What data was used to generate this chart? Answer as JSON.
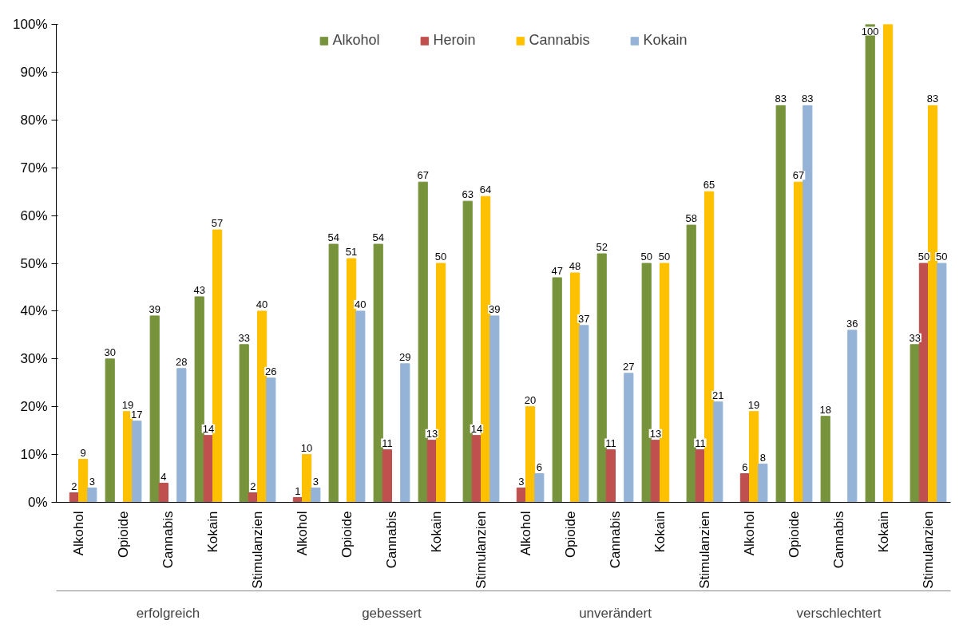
{
  "chart_data": {
    "type": "bar",
    "categories": [
      "Alkohol",
      "Opioide",
      "Cannabis",
      "Kokain",
      "Stimulanzien",
      "Alkohol",
      "Opioide",
      "Cannabis",
      "Kokain",
      "Stimulanzien",
      "Alkohol",
      "Opioide",
      "Cannabis",
      "Kokain",
      "Stimulanzien",
      "Alkohol",
      "Opioide",
      "Cannabis",
      "Kokain",
      "Stimulanzien"
    ],
    "annotations": [
      "erfolgreich",
      "gebessert",
      "unverändert",
      "verschlechtert"
    ],
    "series": [
      {
        "name": "Alkohol",
        "color": "#77933c",
        "values": [
          null,
          30,
          39,
          43,
          33,
          null,
          54,
          54,
          67,
          63,
          null,
          47,
          52,
          50,
          58,
          null,
          83,
          18,
          100,
          33
        ],
        "value_labels": [
          null,
          "30",
          "39",
          "43",
          "33",
          null,
          "54",
          "54",
          "67",
          "63",
          null,
          "47",
          "52",
          "50",
          "58",
          null,
          "83",
          "18",
          "100",
          "33"
        ]
      },
      {
        "name": "Heroin",
        "color": "#c0504d",
        "values": [
          2,
          null,
          4,
          14,
          2,
          1,
          null,
          11,
          13,
          14,
          3,
          null,
          11,
          13,
          11,
          6,
          null,
          null,
          null,
          50
        ],
        "value_labels": [
          "2",
          null,
          "4",
          "14",
          "2",
          "1",
          null,
          "11",
          "13",
          "14",
          "3",
          null,
          "11",
          "13",
          "11",
          "6",
          null,
          null,
          null,
          "50"
        ]
      },
      {
        "name": "Cannabis",
        "color": "#ffc000",
        "values": [
          9,
          19,
          null,
          57,
          40,
          10,
          51,
          null,
          50,
          64,
          20,
          48,
          null,
          50,
          65,
          19,
          67,
          null,
          100,
          83
        ],
        "value_labels": [
          "9",
          "19",
          null,
          "57",
          "40",
          "10",
          "51",
          null,
          "50",
          "64",
          "20",
          "48",
          null,
          "50",
          "65",
          "19",
          "67",
          null,
          null,
          "83"
        ]
      },
      {
        "name": "Kokain",
        "color": "#95b3d7",
        "values": [
          3,
          17,
          28,
          null,
          26,
          3,
          40,
          29,
          null,
          39,
          6,
          37,
          27,
          null,
          21,
          8,
          83,
          36,
          null,
          50
        ],
        "value_labels": [
          "3",
          "17",
          "28",
          null,
          "26",
          "3",
          "40",
          "29",
          null,
          "39",
          "6",
          "37",
          "27",
          null,
          "21",
          "8",
          "83",
          "36",
          null,
          "50"
        ]
      }
    ],
    "ylim": [
      0,
      100
    ],
    "yticks": [
      {
        "value": 0,
        "label": "0%"
      },
      {
        "value": 10,
        "label": "10%"
      },
      {
        "value": 20,
        "label": "20%"
      },
      {
        "value": 30,
        "label": "30%"
      },
      {
        "value": 40,
        "label": "40%"
      },
      {
        "value": 50,
        "label": "50%"
      },
      {
        "value": 60,
        "label": "60%"
      },
      {
        "value": 70,
        "label": "70%"
      },
      {
        "value": 80,
        "label": "80%"
      },
      {
        "value": 90,
        "label": "90%"
      },
      {
        "value": 100,
        "label": "100%"
      }
    ],
    "legend": "top",
    "grid": false
  }
}
